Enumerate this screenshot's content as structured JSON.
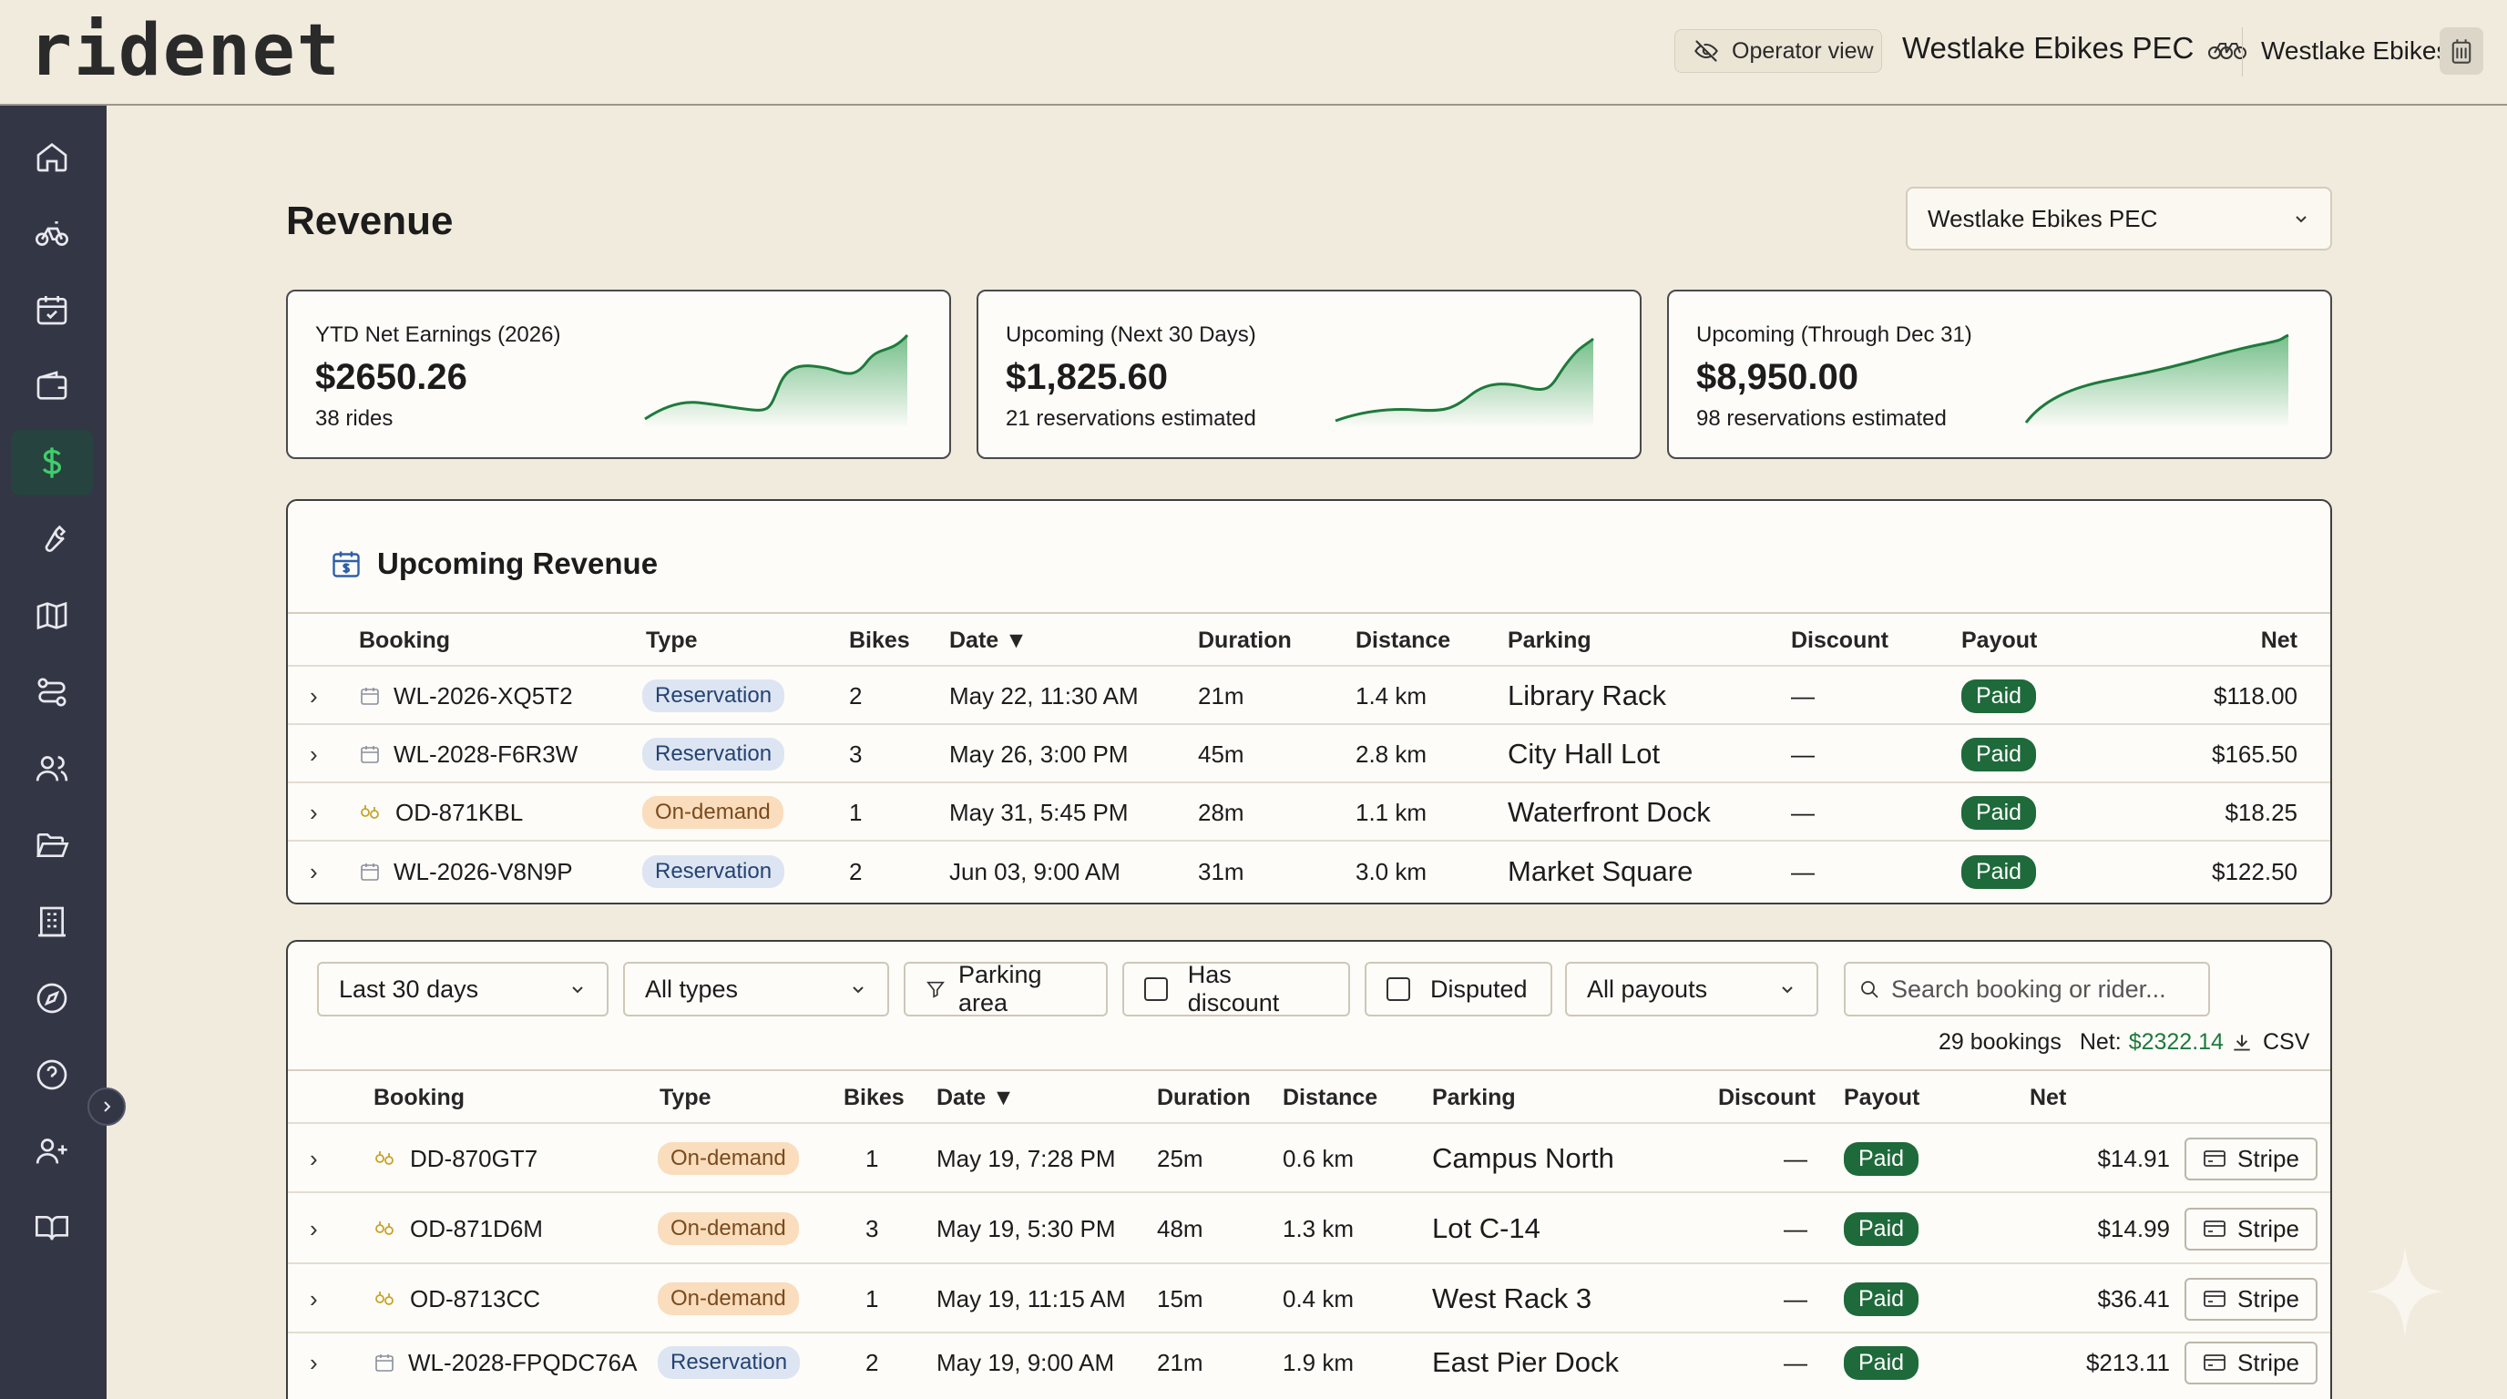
{
  "header": {
    "logo": "ridenet",
    "operator_view": "Operator view",
    "org_title": "Westlake Ebikes PEC",
    "org_name": "Westlake Ebikes"
  },
  "sidebar": {
    "items": [
      {
        "icon": "home-icon"
      },
      {
        "icon": "bike-icon"
      },
      {
        "icon": "calendar-check-icon"
      },
      {
        "icon": "wallet-icon"
      },
      {
        "icon": "dollar-icon",
        "active": true
      },
      {
        "icon": "wrench-icon"
      },
      {
        "icon": "map-icon"
      },
      {
        "icon": "route-icon"
      },
      {
        "icon": "users-icon"
      },
      {
        "icon": "folder-open-icon"
      },
      {
        "icon": "building-icon"
      },
      {
        "icon": "compass-icon"
      },
      {
        "icon": "help-circle-icon"
      },
      {
        "icon": "user-plus-icon"
      },
      {
        "icon": "book-open-icon"
      }
    ]
  },
  "page": {
    "title": "Revenue",
    "org_select": "Westlake Ebikes PEC"
  },
  "cards": [
    {
      "label": "YTD Net Earnings (2026)",
      "value": "$2650.26",
      "sub": "38 rides"
    },
    {
      "label": "Upcoming (Next 30 Days)",
      "value": "$1,825.60",
      "sub": "21 reservations estimated"
    },
    {
      "label": "Upcoming (Through Dec 31)",
      "value": "$8,950.00",
      "sub": "98 reservations estimated"
    }
  ],
  "upcoming": {
    "title": "Upcoming Revenue",
    "columns": {
      "booking": "Booking",
      "type": "Type",
      "bikes": "Bikes",
      "date": "Date ▼",
      "duration": "Duration",
      "distance": "Distance",
      "parking": "Parking",
      "discount": "Discount",
      "payout": "Payout",
      "net": "Net"
    },
    "rows": [
      {
        "booking": "WL-2026-XQ5T2",
        "type": "Reservation",
        "bikes": "2",
        "date": "May 22, 11:30 AM",
        "duration": "21m",
        "distance": "1.4 km",
        "parking": "Library Rack",
        "discount": "—",
        "payout": "Paid",
        "net": "$118.00"
      },
      {
        "booking": "WL-2028-F6R3W",
        "type": "Reservation",
        "bikes": "3",
        "date": "May 26, 3:00 PM",
        "duration": "45m",
        "distance": "2.8 km",
        "parking": "City Hall Lot",
        "discount": "—",
        "payout": "Paid",
        "net": "$165.50"
      },
      {
        "booking": "OD-871KBL",
        "type": "On-demand",
        "bikes": "1",
        "date": "May 31, 5:45 PM",
        "duration": "28m",
        "distance": "1.1 km",
        "parking": "Waterfront Dock",
        "discount": "—",
        "payout": "Paid",
        "net": "$18.25"
      },
      {
        "booking": "WL-2026-V8N9P",
        "type": "Reservation",
        "bikes": "2",
        "date": "Jun 03, 9:00 AM",
        "duration": "31m",
        "distance": "3.0 km",
        "parking": "Market Square",
        "discount": "—",
        "payout": "Paid",
        "net": "$122.50"
      }
    ]
  },
  "history": {
    "filters": {
      "range": "Last 30 days",
      "types": "All types",
      "parking_area": "Parking area",
      "has_discount": "Has discount",
      "disputed": "Disputed",
      "payouts": "All payouts",
      "search_placeholder": "Search booking or rider..."
    },
    "summary": {
      "count": "29 bookings",
      "net_label": "Net:",
      "net_value": "$2322.14",
      "csv": "CSV"
    },
    "columns": {
      "booking": "Booking",
      "type": "Type",
      "bikes": "Bikes",
      "date": "Date ▼",
      "duration": "Duration",
      "distance": "Distance",
      "parking": "Parking",
      "discount": "Discount",
      "payout": "Payout",
      "net": "Net"
    },
    "rows": [
      {
        "booking": "DD-870GT7",
        "type": "On-demand",
        "bikes": "1",
        "date": "May 19, 7:28 PM",
        "duration": "25m",
        "distance": "0.6 km",
        "parking": "Campus North",
        "discount": "—",
        "payout": "Paid",
        "net": "$14.91",
        "action": "Stripe"
      },
      {
        "booking": "OD-871D6M",
        "type": "On-demand",
        "bikes": "3",
        "date": "May 19, 5:30 PM",
        "duration": "48m",
        "distance": "1.3 km",
        "parking": "Lot C-14",
        "discount": "—",
        "payout": "Paid",
        "net": "$14.99",
        "action": "Stripe"
      },
      {
        "booking": "OD-8713CC",
        "type": "On-demand",
        "bikes": "1",
        "date": "May 19, 11:15 AM",
        "duration": "15m",
        "distance": "0.4 km",
        "parking": "West Rack 3",
        "discount": "—",
        "payout": "Paid",
        "net": "$36.41",
        "action": "Stripe"
      },
      {
        "booking": "WL-2028-FPQDC76A",
        "type": "Reservation",
        "bikes": "2",
        "date": "May 19, 9:00 AM",
        "duration": "21m",
        "distance": "1.9 km",
        "parking": "East Pier Dock",
        "discount": "—",
        "payout": "Paid",
        "net": "$213.11",
        "action": "Stripe"
      }
    ]
  },
  "colors": {
    "accent_green": "#1e6a3a",
    "sidebar_bg": "#333645",
    "sidebar_active": "#27433f",
    "page_bg": "#f1ebdd",
    "net_green": "#1e7a3c"
  }
}
